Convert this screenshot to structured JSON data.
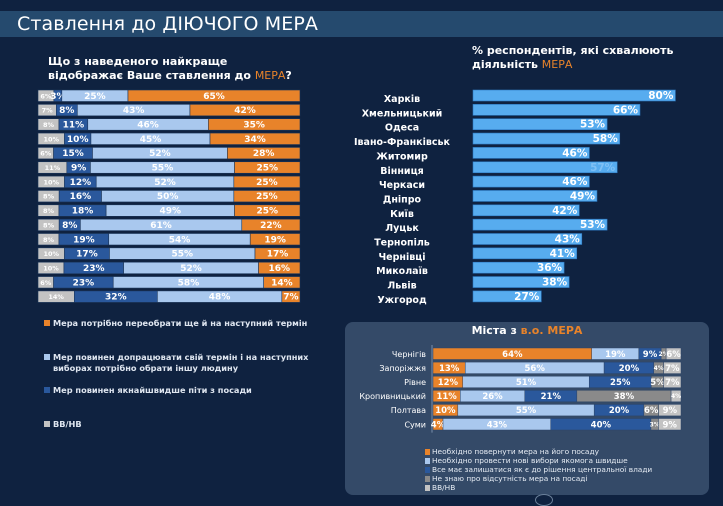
{
  "header": {
    "title": "Ставлення до ДІЮЧОГО МЕРА"
  },
  "colors": {
    "orange": "#e8832a",
    "light_blue": "#a9c8ee",
    "dark_blue": "#2a589c",
    "gray": "#8a8a8a",
    "light_gray": "#c3c3c3",
    "approval_blue": "#57acef"
  },
  "chart_data": [
    {
      "id": "attitude",
      "type": "bar",
      "orientation": "horizontal-stacked-100",
      "title_line1": "Що з наведеного найкраще",
      "title_line2_prefix": "відображає Ваше ставлення до ",
      "title_line2_accent": "МЕРА",
      "title_line2_suffix": "?",
      "categories": [
        "Харків",
        "Хмельницький",
        "Одеса",
        "Івано-Франківськ",
        "Житомир",
        "Вінниця",
        "Черкаси",
        "Дніпро",
        "Київ",
        "Луцьк",
        "Тернопіль",
        "Чернівці",
        "Миколаїв",
        "Львів",
        "Ужгород"
      ],
      "series": [
        {
          "name": "ВВ/НВ",
          "color_key": "light_gray",
          "values": [
            6,
            7,
            8,
            10,
            6,
            11,
            10,
            8,
            8,
            8,
            8,
            10,
            10,
            6,
            14
          ]
        },
        {
          "name": "Мер повинен якнайшвидше піти з посади",
          "color_key": "dark_blue",
          "values": [
            3,
            8,
            11,
            10,
            15,
            9,
            12,
            16,
            18,
            8,
            19,
            17,
            23,
            23,
            32
          ]
        },
        {
          "name": "Мер повинен допрацювати свій термін і на наступних виборах потрібно обрати іншу людину",
          "color_key": "light_blue",
          "values": [
            25,
            43,
            46,
            45,
            52,
            55,
            52,
            50,
            49,
            61,
            54,
            55,
            52,
            58,
            48
          ]
        },
        {
          "name": "Мера  потрібно переобрати ще й на наступний термін",
          "color_key": "orange",
          "values": [
            65,
            42,
            35,
            34,
            28,
            25,
            25,
            25,
            25,
            22,
            19,
            17,
            16,
            14,
            7
          ]
        }
      ],
      "legend": [
        {
          "label": "Мера  потрібно переобрати ще й на наступний термін",
          "color_key": "orange"
        },
        {
          "label_line1": "Мер повинен допрацювати свій термін і на наступних",
          "label_line2": "виборах потрібно обрати іншу людину",
          "color_key": "light_blue"
        },
        {
          "label": "Мер повинен якнайшвидше піти з посади",
          "color_key": "dark_blue"
        },
        {
          "label": "ВВ/НВ",
          "color_key": "light_gray"
        }
      ],
      "legend_position": "bottom-left",
      "unit": "%"
    },
    {
      "id": "approval",
      "type": "bar",
      "orientation": "horizontal",
      "title_line1": "% респондентів, які схвалюють",
      "title_line2_prefix": "діяльність ",
      "title_line2_accent": "МЕРА",
      "categories": [
        "Харків",
        "Хмельницький",
        "Одеса",
        "Івано-Франківськ",
        "Житомир",
        "Вінниця",
        "Черкаси",
        "Дніпро",
        "Київ",
        "Луцьк",
        "Тернопіль",
        "Чернівці",
        "Миколаїв",
        "Львів",
        "Ужгород"
      ],
      "values": [
        80,
        66,
        53,
        58,
        46,
        57,
        46,
        49,
        42,
        53,
        43,
        41,
        36,
        38,
        27
      ],
      "labels": [
        "80%",
        "66%",
        "53%",
        "58%",
        "46%",
        "57%",
        "46%",
        "49%",
        "42%",
        "53%",
        "43%",
        "41%",
        "36%",
        "38%",
        "27%"
      ],
      "xlim": [
        0,
        100
      ],
      "unit": "%"
    },
    {
      "id": "acting_mayor",
      "type": "bar",
      "orientation": "horizontal-stacked-100",
      "title_prefix": "Міста з  ",
      "title_accent": "в.о. МЕРА",
      "categories": [
        "Чернігів",
        "Запоріжжя",
        "Рівне",
        "Кропивницький",
        "Полтава",
        "Суми"
      ],
      "series": [
        {
          "name": "Необхідно повернути мера на його посаду",
          "color_key": "orange",
          "values": [
            64,
            13,
            12,
            11,
            10,
            4
          ]
        },
        {
          "name": "Необхідно провести нові вибори якомога швидше",
          "color_key": "light_blue",
          "values": [
            19,
            56,
            51,
            26,
            55,
            43
          ]
        },
        {
          "name": "Все має залишатися як є до рішення центральної влади",
          "color_key": "dark_blue",
          "values": [
            9,
            20,
            25,
            21,
            20,
            40
          ]
        },
        {
          "name": "Не знаю про відсутність мера на посаді",
          "color_key": "gray",
          "values": [
            2,
            4,
            5,
            38,
            6,
            3
          ]
        },
        {
          "name": "ВВ/НВ",
          "color_key": "light_gray",
          "values": [
            6,
            7,
            7,
            4,
            9,
            9
          ]
        }
      ],
      "legend": [
        {
          "label": "Необхідно повернути мера на його посаду",
          "color_key": "orange"
        },
        {
          "label": "Необхідно провести нові вибори якомога швидше",
          "color_key": "light_blue"
        },
        {
          "label": "Все має залишатися як є до рішення центральної влади",
          "color_key": "dark_blue"
        },
        {
          "label": "Не знаю про відсутність мера на посаді",
          "color_key": "gray"
        },
        {
          "label": "ВВ/НВ",
          "color_key": "light_gray"
        }
      ],
      "legend_position": "bottom",
      "unit": "%"
    }
  ]
}
